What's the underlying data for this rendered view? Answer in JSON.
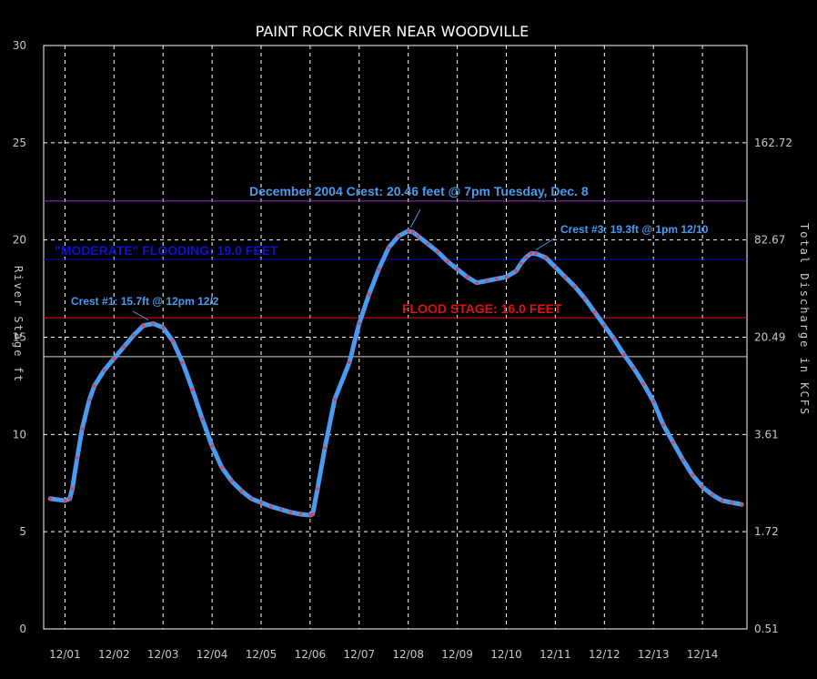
{
  "chart_data": {
    "type": "line",
    "title": "PAINT ROCK RIVER NEAR WOODVILLE",
    "ylabel": "River Stage ft",
    "y2label": "Total Discharge in KCFS",
    "ylim": [
      0,
      30
    ],
    "y_ticks": [
      "0",
      "5",
      "10",
      "15",
      "20",
      "25",
      "30"
    ],
    "y2_ticks": [
      "0.51",
      "1.72",
      "3.61",
      "20.49",
      "82.67",
      "162.72"
    ],
    "x_ticks": [
      "12/01",
      "12/02",
      "12/03",
      "12/04",
      "12/05",
      "12/06",
      "12/07",
      "12/08",
      "12/09",
      "12/10",
      "12/11",
      "12/12",
      "12/13",
      "12/14"
    ],
    "xlim_days": [
      0.7,
      14.8
    ],
    "grid": true,
    "series": [
      {
        "color": "#4a9bf0",
        "marker_color": "#e0405a",
        "x_day": [
          0.7,
          1.0,
          1.1,
          1.15,
          1.25,
          1.35,
          1.5,
          1.6,
          1.8,
          2.0,
          2.2,
          2.4,
          2.6,
          2.8,
          3.0,
          3.2,
          3.4,
          3.6,
          3.8,
          4.0,
          4.2,
          4.4,
          4.6,
          4.8,
          5.0,
          5.2,
          5.4,
          5.6,
          5.8,
          6.0,
          6.05,
          6.15,
          6.3,
          6.5,
          6.8,
          7.0,
          7.2,
          7.4,
          7.6,
          7.8,
          8.0,
          8.1,
          8.2,
          8.4,
          8.6,
          8.8,
          9.0,
          9.2,
          9.4,
          9.6,
          9.8,
          10.0,
          10.2,
          10.3,
          10.4,
          10.5,
          10.6,
          10.8,
          11.0,
          11.2,
          11.4,
          11.6,
          11.8,
          12.0,
          12.2,
          12.4,
          12.6,
          12.8,
          13.0,
          13.2,
          13.4,
          13.6,
          13.8,
          14.0,
          14.2,
          14.4,
          14.6,
          14.8
        ],
        "stage": [
          6.7,
          6.6,
          6.7,
          7.2,
          8.8,
          10.3,
          11.8,
          12.5,
          13.3,
          13.9,
          14.5,
          15.1,
          15.6,
          15.7,
          15.5,
          14.8,
          13.7,
          12.3,
          10.8,
          9.4,
          8.3,
          7.6,
          7.1,
          6.7,
          6.5,
          6.3,
          6.15,
          6.0,
          5.9,
          5.85,
          5.9,
          7.2,
          9.3,
          11.8,
          13.7,
          15.7,
          17.2,
          18.5,
          19.6,
          20.2,
          20.46,
          20.4,
          20.2,
          19.8,
          19.4,
          18.9,
          18.5,
          18.1,
          17.8,
          17.9,
          18.0,
          18.1,
          18.4,
          18.8,
          19.1,
          19.3,
          19.3,
          19.1,
          18.6,
          18.1,
          17.6,
          17.0,
          16.3,
          15.6,
          14.9,
          14.1,
          13.4,
          12.6,
          11.7,
          10.5,
          9.6,
          8.7,
          7.9,
          7.3,
          6.9,
          6.6,
          6.5,
          6.4
        ]
      }
    ],
    "reference_lines": [
      {
        "y": 22.0,
        "color": "#9040c0"
      },
      {
        "label": "\"MODERATE\" FLOODING: 19.0 FEET",
        "y": 19.0,
        "color": "#1010d0"
      },
      {
        "label": "FLOOD STAGE: 16.0 FEET",
        "y": 16.0,
        "color": "#e01010"
      },
      {
        "y": 14.0,
        "color": "#d8d8c0"
      }
    ],
    "annotations": [
      {
        "text": "December 2004 Crest: 20.46 feet @ 7pm Tuesday, Dec. 8",
        "x_day": 8.05,
        "y": 20.46,
        "color": "#4a9bf0"
      },
      {
        "text": "Crest #1: 15.7ft @ 12pm 12/2",
        "x_day": 2.7,
        "y": 15.7,
        "color": "#4a9bf0"
      },
      {
        "text": "Crest #3: 19.3ft @ 1pm 12/10",
        "x_day": 10.6,
        "y": 19.3,
        "color": "#4a9bf0"
      }
    ]
  }
}
